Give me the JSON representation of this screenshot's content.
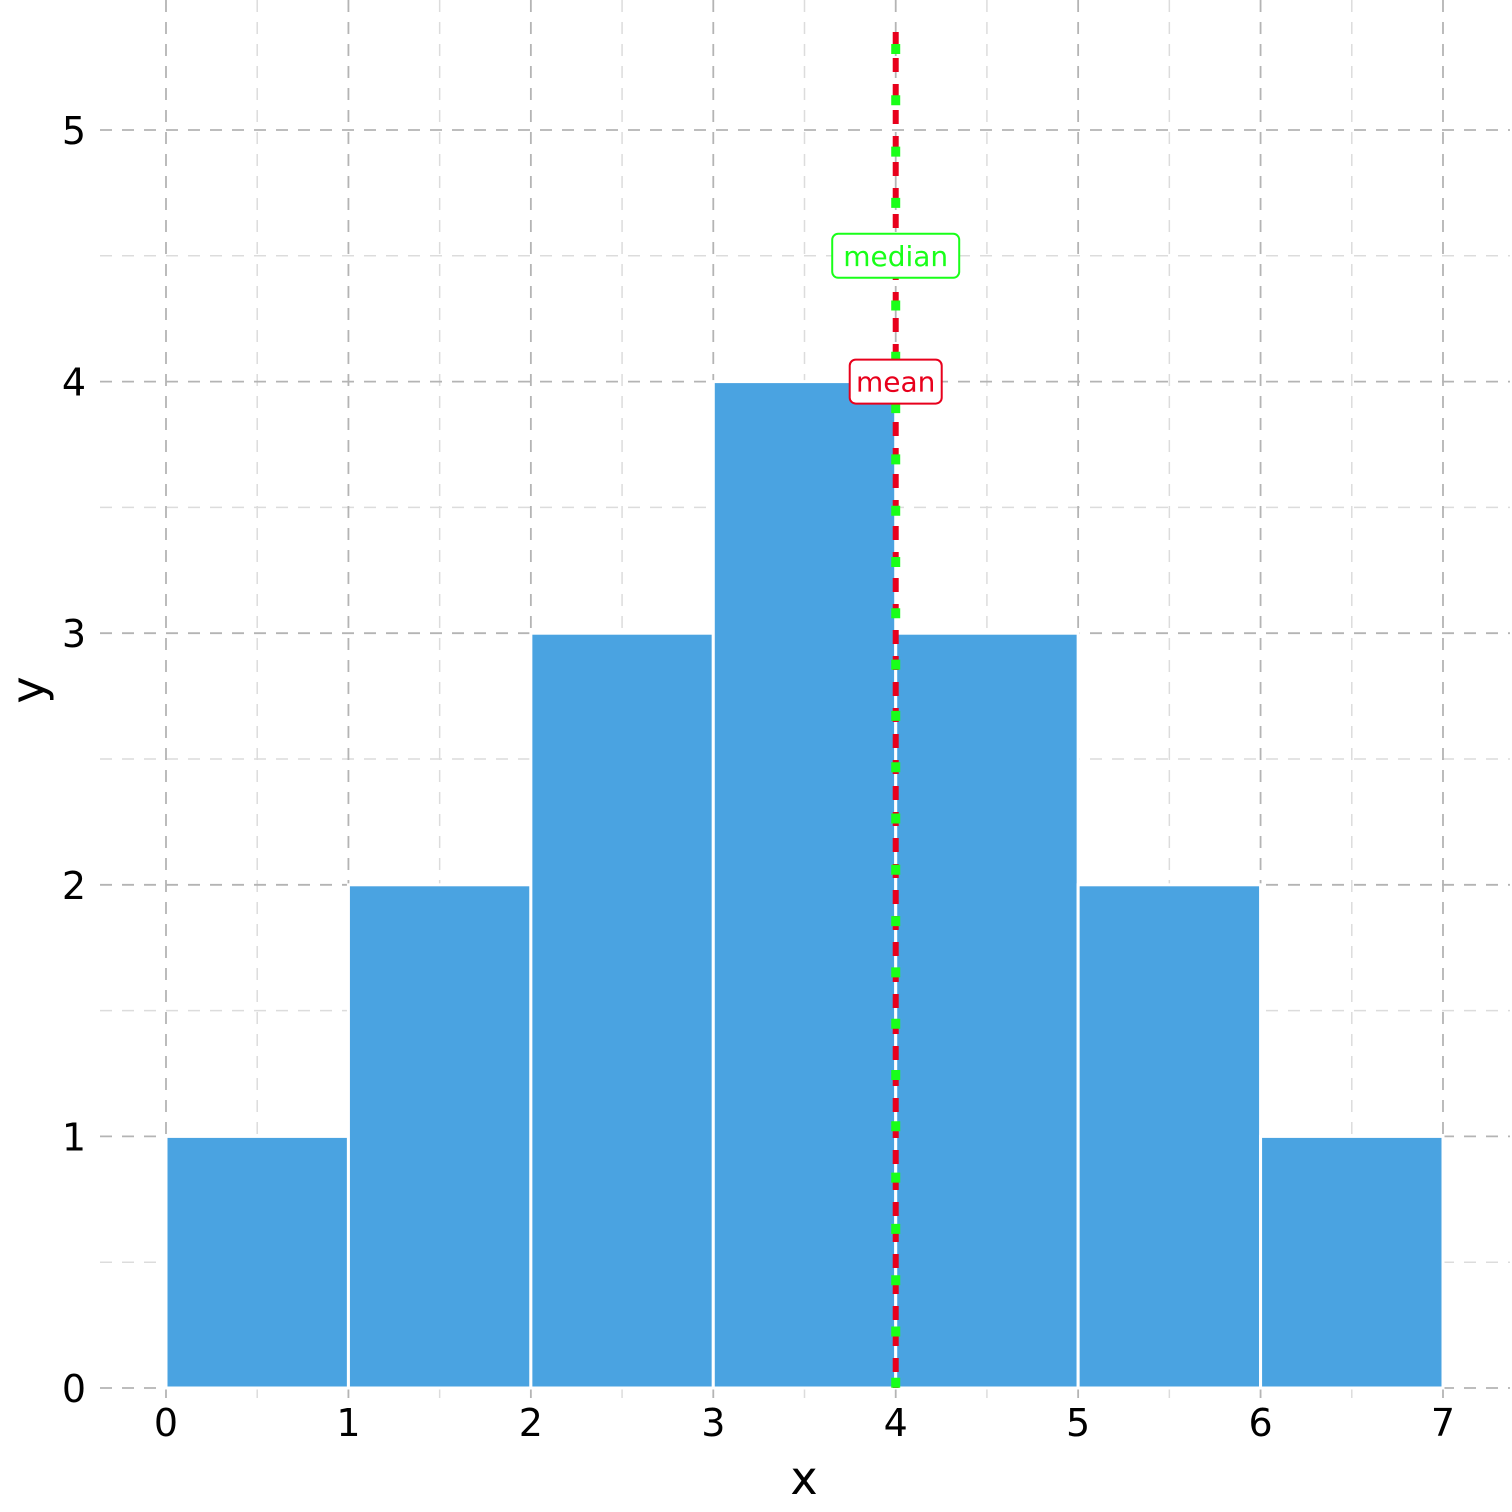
{
  "chart_data": {
    "type": "bar",
    "title": "",
    "xlabel": "x",
    "ylabel": "y",
    "bins": [
      {
        "x0": 0,
        "x1": 1,
        "count": 1
      },
      {
        "x0": 1,
        "x1": 2,
        "count": 2
      },
      {
        "x0": 2,
        "x1": 3,
        "count": 3
      },
      {
        "x0": 3,
        "x1": 4,
        "count": 4
      },
      {
        "x0": 4,
        "x1": 5,
        "count": 3
      },
      {
        "x0": 5,
        "x1": 6,
        "count": 2
      },
      {
        "x0": 6,
        "x1": 7,
        "count": 1
      }
    ],
    "xlim": [
      0,
      7
    ],
    "ylim": [
      0,
      5.4
    ],
    "xticks": [
      "0",
      "1",
      "2",
      "3",
      "4",
      "5",
      "6",
      "7"
    ],
    "yticks": [
      "0",
      "1",
      "2",
      "3",
      "4",
      "5"
    ],
    "grid": true,
    "bar_color": "#4aa3e1",
    "reference_lines": [
      {
        "label": "mean",
        "x": 4,
        "label_y": 4.0,
        "color": "#e8001c",
        "style": "dashed"
      },
      {
        "label": "median",
        "x": 4,
        "label_y": 4.5,
        "color": "#19ff19",
        "style": "dotted"
      }
    ]
  }
}
